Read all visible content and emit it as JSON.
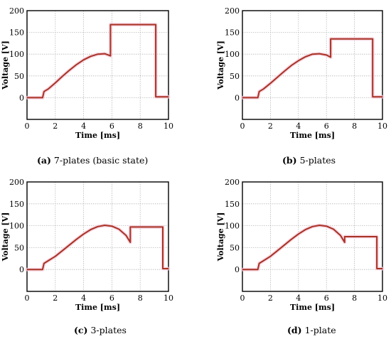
{
  "chart_data": [
    {
      "type": "line",
      "caption_label": "(a)",
      "caption_text": "7-plates (basic state)",
      "xlabel": "Time [ms]",
      "ylabel": "Voltage [V]",
      "xlim": [
        0,
        10
      ],
      "ylim": [
        -50,
        200
      ],
      "xticks": [
        0,
        2,
        4,
        6,
        8,
        10
      ],
      "yticks": [
        0,
        50,
        100,
        150,
        200
      ],
      "grid": true,
      "line_color": "#a83224",
      "series": [
        {
          "x": [
            0,
            1.1,
            1.2,
            1.5,
            2,
            2.5,
            3,
            3.5,
            4,
            4.5,
            5,
            5.5,
            5.9,
            5.9,
            9.1,
            9.1,
            10
          ],
          "y": [
            0,
            0,
            14,
            20,
            34,
            49,
            63,
            76,
            87,
            95,
            100,
            101,
            96,
            168,
            168,
            2,
            2
          ]
        }
      ]
    },
    {
      "type": "line",
      "caption_label": "(b)",
      "caption_text": "5-plates",
      "xlabel": "Time [ms]",
      "ylabel": "Voltage [V]",
      "xlim": [
        0,
        10
      ],
      "ylim": [
        -50,
        200
      ],
      "xticks": [
        0,
        2,
        4,
        6,
        8,
        10
      ],
      "yticks": [
        0,
        50,
        100,
        150,
        200
      ],
      "grid": true,
      "line_color": "#a83224",
      "series": [
        {
          "x": [
            0,
            1.1,
            1.2,
            1.5,
            2,
            2.5,
            3,
            3.5,
            4,
            4.5,
            5,
            5.5,
            6,
            6.3,
            6.3,
            9.3,
            9.3,
            10
          ],
          "y": [
            0,
            0,
            14,
            20,
            33,
            47,
            61,
            74,
            85,
            94,
            100,
            101,
            98,
            93,
            135,
            135,
            2,
            2
          ]
        }
      ]
    },
    {
      "type": "line",
      "caption_label": "(c)",
      "caption_text": "3-plates",
      "xlabel": "Time [ms]",
      "ylabel": "Voltage [V]",
      "xlim": [
        0,
        10
      ],
      "ylim": [
        -50,
        200
      ],
      "xticks": [
        0,
        2,
        4,
        6,
        8,
        10
      ],
      "yticks": [
        0,
        50,
        100,
        150,
        200
      ],
      "grid": true,
      "line_color": "#a83224",
      "series": [
        {
          "x": [
            0,
            1.1,
            1.2,
            1.5,
            2,
            2.5,
            3,
            3.5,
            4,
            4.5,
            5,
            5.5,
            6,
            6.5,
            7,
            7.3,
            7.3,
            9.6,
            9.6,
            10
          ],
          "y": [
            0,
            0,
            14,
            20,
            30,
            43,
            56,
            69,
            81,
            91,
            98,
            101,
            99,
            92,
            78,
            62,
            97,
            97,
            2,
            2
          ]
        }
      ]
    },
    {
      "type": "line",
      "caption_label": "(d)",
      "caption_text": "1-plate",
      "xlabel": "Time [ms]",
      "ylabel": "Voltage [V]",
      "xlim": [
        0,
        10
      ],
      "ylim": [
        -50,
        200
      ],
      "xticks": [
        0,
        2,
        4,
        6,
        8,
        10
      ],
      "yticks": [
        0,
        50,
        100,
        150,
        200
      ],
      "grid": true,
      "line_color": "#a83224",
      "series": [
        {
          "x": [
            0,
            1.1,
            1.2,
            1.5,
            2,
            2.5,
            3,
            3.5,
            4,
            4.5,
            5,
            5.5,
            6,
            6.5,
            7,
            7.3,
            7.3,
            9.6,
            9.6,
            10
          ],
          "y": [
            0,
            0,
            14,
            20,
            30,
            43,
            56,
            69,
            81,
            91,
            98,
            101,
            99,
            92,
            78,
            62,
            75,
            75,
            2,
            2
          ]
        }
      ]
    }
  ]
}
